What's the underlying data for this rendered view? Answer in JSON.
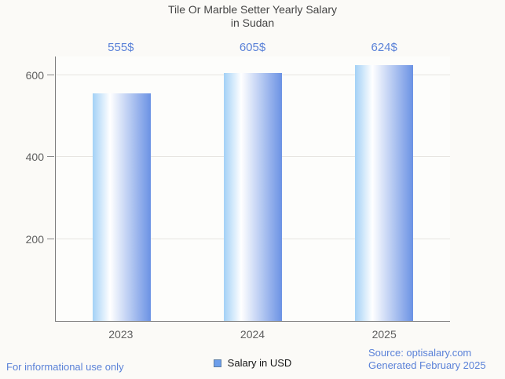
{
  "title": {
    "line1": "Tile Or Marble Setter Yearly Salary",
    "line2": "in Sudan"
  },
  "chart_data": {
    "type": "bar",
    "title": "Tile Or Marble Setter Yearly Salary in Sudan",
    "categories": [
      "2023",
      "2024",
      "2025"
    ],
    "values": [
      555,
      605,
      624
    ],
    "value_labels": [
      "555$",
      "605$",
      "624$"
    ],
    "series_name": "Salary in USD",
    "xlabel": "",
    "ylabel": "",
    "ylim": [
      0,
      646
    ],
    "yticks": [
      200,
      400,
      600
    ],
    "grid": true,
    "legend_position": "bottom"
  },
  "legend": {
    "label": "Salary in USD",
    "swatch_color": "#6d9eeb"
  },
  "footer": {
    "disclaimer": "For informational use only",
    "source": "Source: optisalary.com",
    "generated": "Generated February 2025"
  },
  "colors": {
    "accent_blue": "#5b82d8",
    "bar_gradient_left": "#a3d1f6",
    "bar_gradient_mid": "#ffffff",
    "bar_gradient_right": "#6b92e4",
    "axis_line": "#7b7b7b",
    "gridline": "#e7e5e1",
    "tick_label": "#5f5f5f",
    "title_text": "#454545",
    "background": "#fbfaf7"
  }
}
